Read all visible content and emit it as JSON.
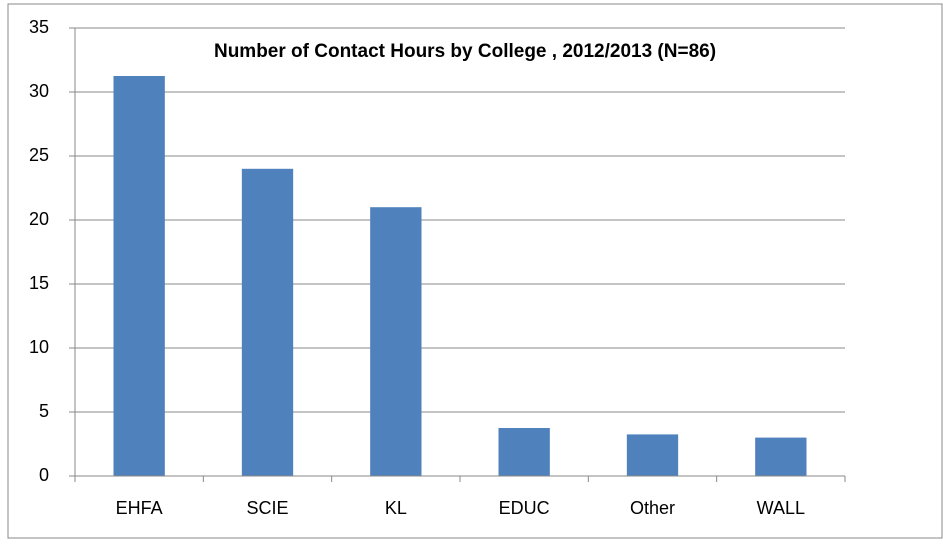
{
  "chart_data": {
    "type": "bar",
    "title": "Number of Contact Hours by College , 2012/2013 (N=86)",
    "categories": [
      "EHFA",
      "SCIE",
      "KL",
      "EDUC",
      "Other",
      "WALL"
    ],
    "values": [
      31.25,
      24,
      21,
      3.75,
      3.25,
      3
    ],
    "color": "#4f81bd",
    "ylim": [
      0,
      35
    ],
    "yticks": [
      0,
      5,
      10,
      15,
      20,
      25,
      30,
      35
    ],
    "grid": true
  }
}
